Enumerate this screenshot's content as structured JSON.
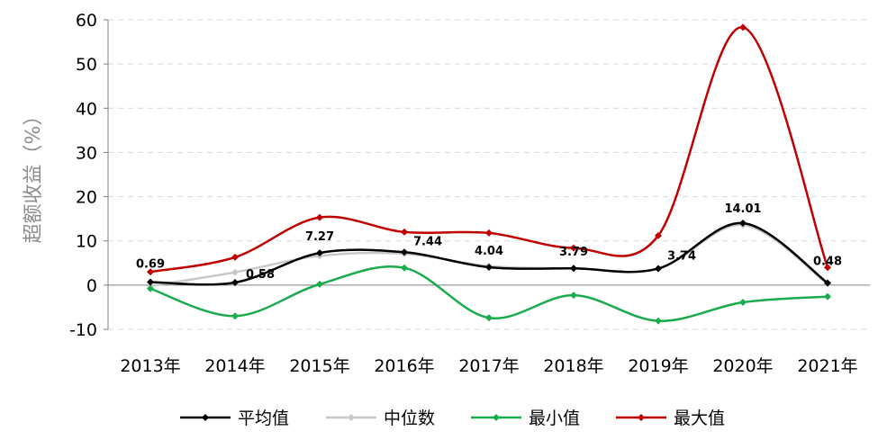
{
  "chart_data": {
    "type": "line",
    "title": "",
    "xlabel": "",
    "ylabel": "超额收益（%）",
    "categories": [
      "2013年",
      "2014年",
      "2015年",
      "2016年",
      "2017年",
      "2018年",
      "2019年",
      "2020年",
      "2021年"
    ],
    "ylim": [
      -10,
      60
    ],
    "yticks": [
      -10,
      0,
      10,
      20,
      30,
      40,
      50,
      60
    ],
    "grid": "horizontal-dashed",
    "smooth": true,
    "legend_position": "bottom",
    "series": [
      {
        "name": "平均值",
        "color": "#000000",
        "values": [
          0.69,
          0.58,
          7.27,
          7.44,
          4.04,
          3.79,
          3.74,
          14.01,
          0.48
        ],
        "data_labels": [
          "0.69",
          "0.58",
          "7.27",
          "7.44",
          "4.04",
          "3.79",
          "3.74",
          "14.01",
          "0.48"
        ]
      },
      {
        "name": "中位数",
        "color": "#c8c8c8",
        "values": [
          -0.2,
          2.9,
          6.6,
          7.1,
          4.3,
          3.8,
          3.7,
          13.6,
          0.3
        ]
      },
      {
        "name": "最小值",
        "color": "#1aab4c",
        "values": [
          -0.8,
          -7.0,
          0.2,
          3.9,
          -7.4,
          -2.3,
          -8.1,
          -3.9,
          -2.6
        ]
      },
      {
        "name": "最大值",
        "color": "#c00000",
        "values": [
          3.0,
          6.3,
          15.3,
          12.0,
          11.8,
          8.4,
          11.2,
          58.3,
          4.0
        ]
      }
    ]
  }
}
